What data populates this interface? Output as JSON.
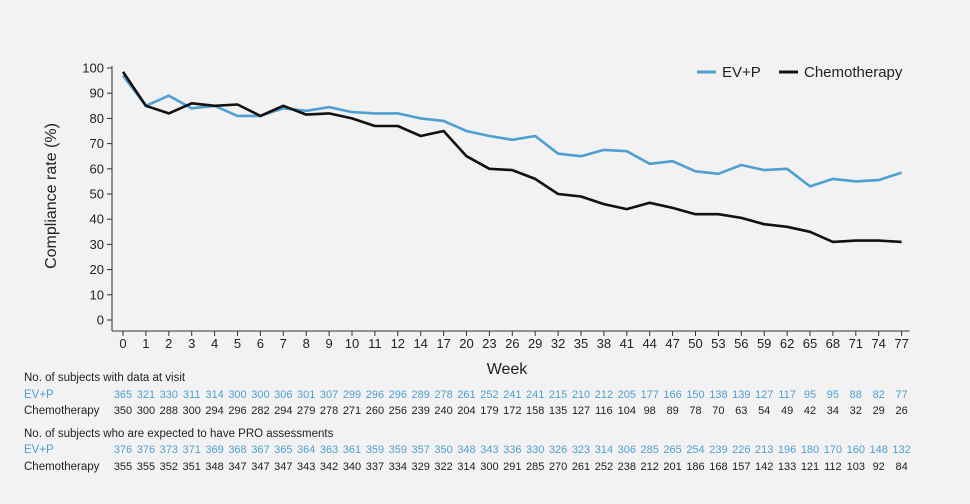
{
  "chart_data": {
    "type": "line",
    "xlabel": "Week",
    "ylabel": "Compliance rate (%)",
    "ylim": [
      0,
      100
    ],
    "yticks": [
      "0",
      "10",
      "20",
      "30",
      "40",
      "50",
      "60",
      "70",
      "80",
      "90",
      "100"
    ],
    "categories": [
      "0",
      "1",
      "2",
      "3",
      "4",
      "5",
      "6",
      "7",
      "8",
      "9",
      "10",
      "11",
      "12",
      "14",
      "17",
      "20",
      "23",
      "26",
      "29",
      "32",
      "35",
      "38",
      "41",
      "44",
      "47",
      "50",
      "53",
      "56",
      "59",
      "62",
      "65",
      "68",
      "71",
      "74",
      "77"
    ],
    "grid": false,
    "legend_position": "top-right",
    "series": [
      {
        "name": "EV+P",
        "color": "#4f9fd1",
        "values": [
          97,
          85,
          89,
          84,
          85,
          81,
          81,
          84,
          83,
          84.5,
          82.5,
          82,
          82,
          80,
          79,
          75,
          73,
          71.5,
          73,
          66,
          65,
          67.5,
          67,
          62,
          63,
          59,
          58,
          61.5,
          59.5,
          60,
          53,
          56,
          55,
          55.5,
          58.5
        ]
      },
      {
        "name": "Chemotherapy",
        "color": "#111111",
        "values": [
          98.5,
          85,
          82,
          86,
          85,
          85.5,
          81,
          85,
          81.5,
          82,
          80,
          77,
          77,
          73,
          75,
          65,
          60,
          59.5,
          56,
          50,
          49,
          46,
          44,
          46.5,
          44.5,
          42,
          42,
          40.5,
          38,
          37,
          35,
          31,
          31.5,
          31.5,
          31
        ]
      }
    ],
    "table": {
      "data_at_visit": {
        "header": "No. of subjects with data at visit",
        "ev_label": "EV+P",
        "ev_values": [
          "365",
          "321",
          "330",
          "311",
          "314",
          "300",
          "300",
          "306",
          "301",
          "307",
          "299",
          "296",
          "296",
          "289",
          "278",
          "261",
          "252",
          "241",
          "241",
          "215",
          "210",
          "212",
          "205",
          "177",
          "166",
          "150",
          "138",
          "139",
          "127",
          "117",
          "95",
          "95",
          "88",
          "82",
          "77"
        ],
        "chemo_label": "Chemotherapy",
        "chemo_values": [
          "350",
          "300",
          "288",
          "300",
          "294",
          "296",
          "282",
          "294",
          "279",
          "278",
          "271",
          "260",
          "256",
          "239",
          "240",
          "204",
          "179",
          "172",
          "158",
          "135",
          "127",
          "116",
          "104",
          "98",
          "89",
          "78",
          "70",
          "63",
          "54",
          "49",
          "42",
          "34",
          "32",
          "29",
          "26"
        ]
      },
      "expected": {
        "header": "No. of subjects who are expected to have PRO assessments",
        "ev_label": "EV+P",
        "ev_values": [
          "376",
          "376",
          "373",
          "371",
          "369",
          "368",
          "367",
          "365",
          "364",
          "363",
          "361",
          "359",
          "359",
          "357",
          "350",
          "348",
          "343",
          "336",
          "330",
          "326",
          "323",
          "314",
          "306",
          "285",
          "265",
          "254",
          "239",
          "226",
          "213",
          "196",
          "180",
          "170",
          "160",
          "148",
          "132"
        ],
        "chemo_label": "Chemotherapy",
        "chemo_values": [
          "355",
          "355",
          "352",
          "351",
          "348",
          "347",
          "347",
          "347",
          "343",
          "342",
          "340",
          "337",
          "334",
          "329",
          "322",
          "314",
          "300",
          "291",
          "285",
          "270",
          "261",
          "252",
          "238",
          "212",
          "201",
          "186",
          "168",
          "157",
          "142",
          "133",
          "121",
          "112",
          "103",
          "92",
          "84"
        ]
      }
    }
  }
}
